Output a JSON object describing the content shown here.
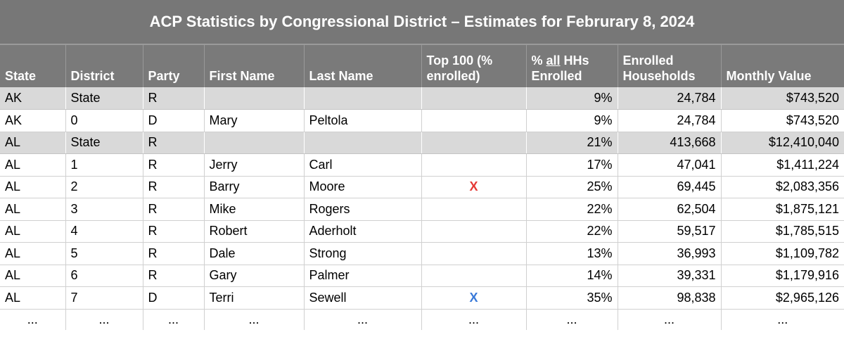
{
  "title": "ACP Statistics by Congressional District – Estimates for Februrary 8, 2024",
  "headers": {
    "state": "State",
    "district": "District",
    "party": "Party",
    "first_name": "First Name",
    "last_name": "Last Name",
    "top100_line1": "Top 100 (%",
    "top100_line2": "enrolled)",
    "pct_prefix": "% ",
    "pct_all": "all",
    "pct_suffix": " HHs",
    "pct_line2": "Enrolled",
    "enrolled_line1": "Enrolled",
    "enrolled_line2": "Households",
    "monthly_value": "Monthly Value"
  },
  "rows": [
    {
      "state": "AK",
      "district": "State",
      "party": "R",
      "first": "",
      "last": "",
      "top": "",
      "pct": "9%",
      "enrolled": "24,784",
      "value": "$743,520",
      "is_state": true
    },
    {
      "state": "AK",
      "district": "0",
      "party": "D",
      "first": "Mary",
      "last": "Peltola",
      "top": "",
      "pct": "9%",
      "enrolled": "24,784",
      "value": "$743,520",
      "is_state": false
    },
    {
      "state": "AL",
      "district": "State",
      "party": "R",
      "first": "",
      "last": "",
      "top": "",
      "pct": "21%",
      "enrolled": "413,668",
      "value": "$12,410,040",
      "is_state": true
    },
    {
      "state": "AL",
      "district": "1",
      "party": "R",
      "first": "Jerry",
      "last": "Carl",
      "top": "",
      "pct": "17%",
      "enrolled": "47,041",
      "value": "$1,411,224",
      "is_state": false
    },
    {
      "state": "AL",
      "district": "2",
      "party": "R",
      "first": "Barry",
      "last": "Moore",
      "top": "X",
      "top_color": "#e53935",
      "pct": "25%",
      "enrolled": "69,445",
      "value": "$2,083,356",
      "is_state": false
    },
    {
      "state": "AL",
      "district": "3",
      "party": "R",
      "first": "Mike",
      "last": "Rogers",
      "top": "",
      "pct": "22%",
      "enrolled": "62,504",
      "value": "$1,875,121",
      "is_state": false
    },
    {
      "state": "AL",
      "district": "4",
      "party": "R",
      "first": "Robert",
      "last": "Aderholt",
      "top": "",
      "pct": "22%",
      "enrolled": "59,517",
      "value": "$1,785,515",
      "is_state": false
    },
    {
      "state": "AL",
      "district": "5",
      "party": "R",
      "first": "Dale",
      "last": "Strong",
      "top": "",
      "pct": "13%",
      "enrolled": "36,993",
      "value": "$1,109,782",
      "is_state": false
    },
    {
      "state": "AL",
      "district": "6",
      "party": "R",
      "first": "Gary",
      "last": "Palmer",
      "top": "",
      "pct": "14%",
      "enrolled": "39,331",
      "value": "$1,179,916",
      "is_state": false
    },
    {
      "state": "AL",
      "district": "7",
      "party": "D",
      "first": "Terri",
      "last": "Sewell",
      "top": "X",
      "top_color": "#3a7ad9",
      "pct": "35%",
      "enrolled": "98,838",
      "value": "$2,965,126",
      "is_state": false
    }
  ],
  "ellipsis": "..."
}
